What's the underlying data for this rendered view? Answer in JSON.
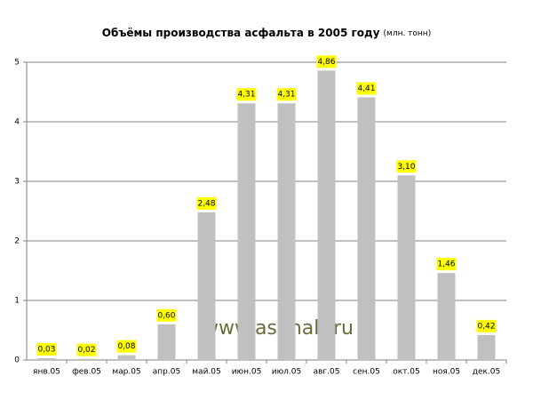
{
  "chart_data": {
    "type": "bar",
    "title": "Объёмы производства асфальта в 2005 году",
    "subtitle": "(млн. тонн)",
    "categories": [
      "янв.05",
      "фев.05",
      "мар.05",
      "апр.05",
      "май.05",
      "июн.05",
      "июл.05",
      "авг.05",
      "сен.05",
      "окт.05",
      "ноя.05",
      "дек.05"
    ],
    "values": [
      0.03,
      0.02,
      0.08,
      0.6,
      2.48,
      4.31,
      4.31,
      4.86,
      4.41,
      3.1,
      1.46,
      0.42
    ],
    "value_labels": [
      "0,03",
      "0,02",
      "0,08",
      "0,60",
      "2,48",
      "4,31",
      "4,31",
      "4,86",
      "4,41",
      "3,10",
      "1,46",
      "0,42"
    ],
    "color": "#c0c0c0",
    "label_color": "#ffff00",
    "ylim": [
      0,
      5
    ],
    "yticks": [
      0,
      1,
      2,
      3,
      4,
      5
    ],
    "grid": true,
    "annotation": "www.asphalt.ru"
  }
}
